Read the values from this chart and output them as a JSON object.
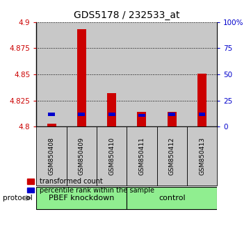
{
  "title": "GDS5178 / 232533_at",
  "samples": [
    "GSM850408",
    "GSM850409",
    "GSM850410",
    "GSM850411",
    "GSM850412",
    "GSM850413"
  ],
  "red_values": [
    4.803,
    4.893,
    4.832,
    4.814,
    4.814,
    4.851
  ],
  "blue_values": [
    4.812,
    4.812,
    4.812,
    4.811,
    4.812,
    4.812
  ],
  "ymin": 4.8,
  "ymax": 4.9,
  "yticks": [
    4.8,
    4.825,
    4.85,
    4.875,
    4.9
  ],
  "y2ticks": [
    0,
    25,
    50,
    75,
    100
  ],
  "y2labels": [
    "0",
    "25",
    "50",
    "75",
    "100%"
  ],
  "bar_color_red": "#CC0000",
  "bar_color_blue": "#0000CC",
  "group1_label": "PBEF knockdown",
  "group2_label": "control",
  "group_color": "#90EE90",
  "sample_bg_color": "#C8C8C8",
  "protocol_label": "protocol",
  "legend_red": "transformed count",
  "legend_blue": "percentile rank within the sample",
  "title_fontsize": 10,
  "axis_color_red": "#CC0000",
  "axis_color_blue": "#0000CC"
}
